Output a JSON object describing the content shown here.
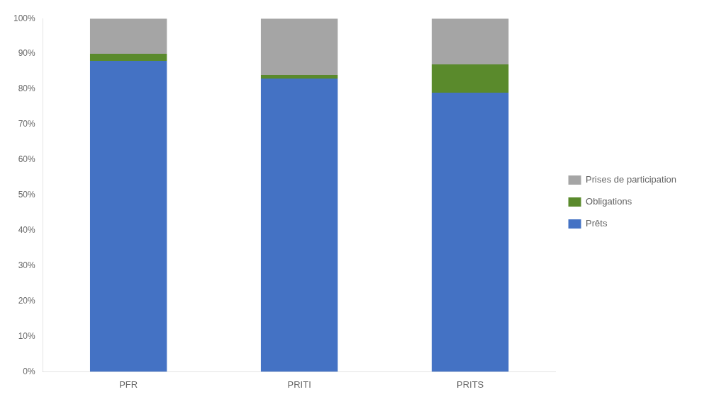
{
  "chart_data": {
    "type": "bar",
    "stacked": true,
    "categories": [
      "PFR",
      "PRITI",
      "PRITS"
    ],
    "series": [
      {
        "name": "Prêts",
        "color": "#4472C4",
        "values": [
          88,
          83,
          79
        ]
      },
      {
        "name": "Obligations",
        "color": "#5A8A2C",
        "values": [
          2,
          1,
          8
        ]
      },
      {
        "name": "Prises de participation",
        "color": "#A5A5A5",
        "values": [
          10,
          16,
          13
        ]
      }
    ],
    "ylim": [
      0,
      100
    ],
    "yticks": [
      {
        "value": 0,
        "label": "0%"
      },
      {
        "value": 10,
        "label": "10%"
      },
      {
        "value": 20,
        "label": "20%"
      },
      {
        "value": 30,
        "label": "30%"
      },
      {
        "value": 40,
        "label": "40%"
      },
      {
        "value": 50,
        "label": "50%"
      },
      {
        "value": 60,
        "label": "60%"
      },
      {
        "value": 70,
        "label": "70%"
      },
      {
        "value": 80,
        "label": "80%"
      },
      {
        "value": 90,
        "label": "90%"
      },
      {
        "value": 100,
        "label": "100%"
      }
    ],
    "grid": false,
    "legend": "right"
  }
}
